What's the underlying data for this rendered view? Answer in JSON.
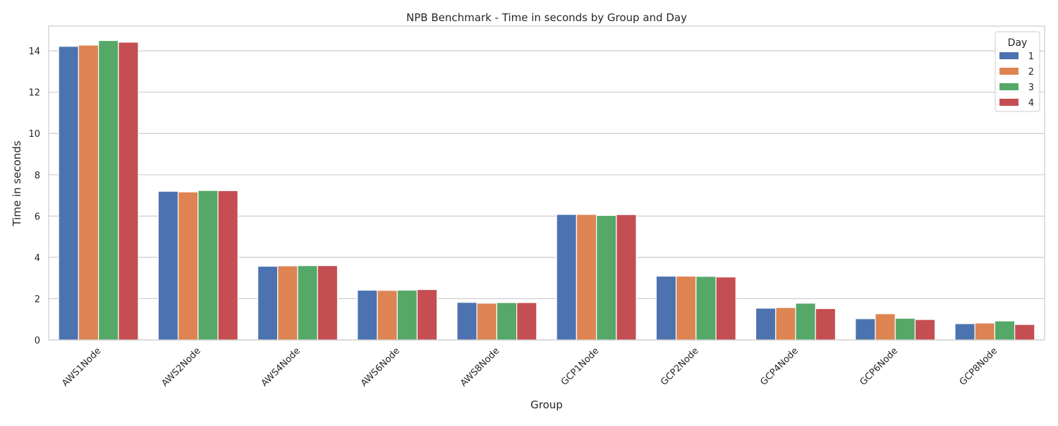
{
  "chart_data": {
    "type": "bar",
    "title": "NPB Benchmark - Time in seconds by Group and Day",
    "xlabel": "Group",
    "ylabel": "Time in seconds",
    "ylim": [
      0,
      15.2
    ],
    "yticks": [
      0,
      2,
      4,
      6,
      8,
      10,
      12,
      14
    ],
    "grid": true,
    "legend": {
      "title": "Day",
      "position": "top-right"
    },
    "categories": [
      "AWS1Node",
      "AWS2Node",
      "AWS4Node",
      "AWS6Node",
      "AWS8Node",
      "GCP1Node",
      "GCP2Node",
      "GCP4Node",
      "GCP6Node",
      "GCP8Node"
    ],
    "series": [
      {
        "name": "1",
        "color": "#4c72b0",
        "values": [
          14.22,
          7.2,
          3.57,
          2.41,
          1.82,
          6.08,
          3.09,
          1.54,
          1.03,
          0.79
        ]
      },
      {
        "name": "2",
        "color": "#dd8452",
        "values": [
          14.28,
          7.17,
          3.59,
          2.4,
          1.78,
          6.08,
          3.09,
          1.57,
          1.27,
          0.82
        ]
      },
      {
        "name": "3",
        "color": "#55a868",
        "values": [
          14.5,
          7.24,
          3.6,
          2.41,
          1.81,
          6.03,
          3.08,
          1.78,
          1.05,
          0.92
        ]
      },
      {
        "name": "4",
        "color": "#c44e52",
        "values": [
          14.42,
          7.23,
          3.6,
          2.44,
          1.81,
          6.07,
          3.05,
          1.52,
          0.99,
          0.75
        ]
      }
    ]
  }
}
